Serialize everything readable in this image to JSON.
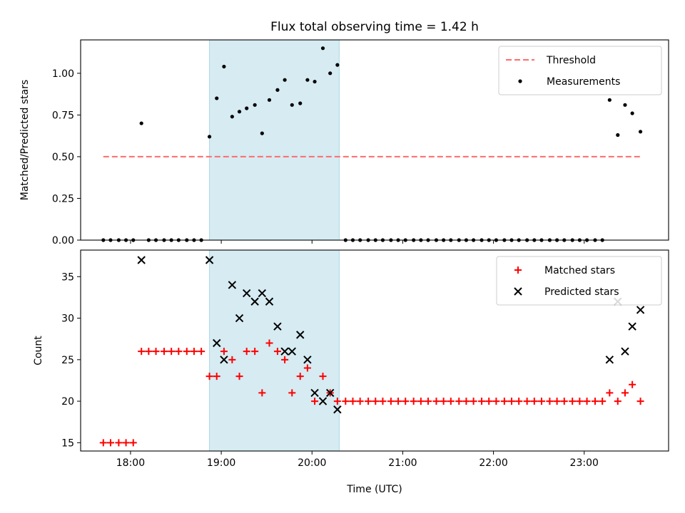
{
  "chart_data": {
    "title": "Flux total observing time = 1.42 h",
    "xlabel": "Time (UTC)",
    "x_units": "hours UTC",
    "xlim": [
      17.45,
      23.93
    ],
    "xticks": [
      {
        "value": 18,
        "label": "18:00"
      },
      {
        "value": 19,
        "label": "19:00"
      },
      {
        "value": 20,
        "label": "20:00"
      },
      {
        "value": 21,
        "label": "21:00"
      },
      {
        "value": 22,
        "label": "22:00"
      },
      {
        "value": 23,
        "label": "23:00"
      }
    ],
    "shaded_region": {
      "x": [
        18.87,
        20.3
      ],
      "color": "#add8e6"
    },
    "panels": [
      {
        "type": "scatter",
        "ylabel": "Matched/Predicted stars",
        "ylim": [
          0,
          1.2
        ],
        "yticks": [
          {
            "value": 0,
            "label": "0.00"
          },
          {
            "value": 0.25,
            "label": "0.25"
          },
          {
            "value": 0.5,
            "label": "0.50"
          },
          {
            "value": 0.75,
            "label": "0.75"
          },
          {
            "value": 1.0,
            "label": "1.00"
          }
        ],
        "legend_position": "upper right",
        "series": [
          {
            "name": "Threshold",
            "kind": "hline",
            "color": "#ff6b6b",
            "style": "dashed",
            "x": [
              17.7,
              23.63
            ],
            "y": [
              0.5,
              0.5
            ]
          },
          {
            "name": "Measurements",
            "kind": "dot",
            "color": "#000000",
            "x": [
              17.7,
              17.78,
              17.87,
              17.95,
              18.03,
              18.12,
              18.2,
              18.28,
              18.37,
              18.45,
              18.53,
              18.62,
              18.7,
              18.78,
              18.87,
              18.95,
              19.03,
              19.12,
              19.2,
              19.28,
              19.37,
              19.45,
              19.53,
              19.62,
              19.7,
              19.78,
              19.87,
              19.95,
              20.03,
              20.12,
              20.2,
              20.28,
              20.37,
              20.45,
              20.53,
              20.62,
              20.7,
              20.78,
              20.87,
              20.95,
              21.03,
              21.12,
              21.2,
              21.28,
              21.37,
              21.45,
              21.53,
              21.62,
              21.7,
              21.78,
              21.87,
              21.95,
              22.03,
              22.12,
              22.2,
              22.28,
              22.37,
              22.45,
              22.53,
              22.62,
              22.7,
              22.78,
              22.87,
              22.95,
              23.03,
              23.12,
              23.2,
              23.28,
              23.37,
              23.45,
              23.53,
              23.62
            ],
            "y": [
              0,
              0,
              0,
              0,
              0,
              0.7,
              0,
              0,
              0,
              0,
              0,
              0,
              0,
              0,
              0.62,
              0.85,
              1.04,
              0.74,
              0.77,
              0.79,
              0.81,
              0.64,
              0.84,
              0.9,
              0.96,
              0.81,
              0.82,
              0.96,
              0.95,
              1.15,
              1.0,
              1.05,
              0,
              0,
              0,
              0,
              0,
              0,
              0,
              0,
              0,
              0,
              0,
              0,
              0,
              0,
              0,
              0,
              0,
              0,
              0,
              0,
              0,
              0,
              0,
              0,
              0,
              0,
              0,
              0,
              0,
              0,
              0,
              0,
              0,
              0,
              0,
              0.84,
              0.63,
              0.81,
              0.76,
              0.65
            ]
          }
        ]
      },
      {
        "type": "scatter",
        "ylabel": "Count",
        "ylim": [
          14,
          38.2
        ],
        "yticks": [
          {
            "value": 15,
            "label": "15"
          },
          {
            "value": 20,
            "label": "20"
          },
          {
            "value": 25,
            "label": "25"
          },
          {
            "value": 30,
            "label": "30"
          },
          {
            "value": 35,
            "label": "35"
          }
        ],
        "legend_position": "upper right",
        "series": [
          {
            "name": "Matched stars",
            "kind": "plus",
            "color": "#ff0000",
            "x": [
              17.7,
              17.78,
              17.87,
              17.95,
              18.03,
              18.12,
              18.2,
              18.28,
              18.37,
              18.45,
              18.53,
              18.62,
              18.7,
              18.78,
              18.87,
              18.95,
              19.03,
              19.12,
              19.2,
              19.28,
              19.37,
              19.45,
              19.53,
              19.62,
              19.7,
              19.78,
              19.87,
              19.95,
              20.03,
              20.12,
              20.2,
              20.28,
              20.37,
              20.45,
              20.53,
              20.62,
              20.7,
              20.78,
              20.87,
              20.95,
              21.03,
              21.12,
              21.2,
              21.28,
              21.37,
              21.45,
              21.53,
              21.62,
              21.7,
              21.78,
              21.87,
              21.95,
              22.03,
              22.12,
              22.2,
              22.28,
              22.37,
              22.45,
              22.53,
              22.62,
              22.7,
              22.78,
              22.87,
              22.95,
              23.03,
              23.12,
              23.2,
              23.28,
              23.37,
              23.45,
              23.53,
              23.62
            ],
            "y": [
              15,
              15,
              15,
              15,
              15,
              26,
              26,
              26,
              26,
              26,
              26,
              26,
              26,
              26,
              23,
              23,
              26,
              25,
              23,
              26,
              26,
              21,
              27,
              26,
              25,
              21,
              23,
              24,
              20,
              23,
              21,
              20,
              20,
              20,
              20,
              20,
              20,
              20,
              20,
              20,
              20,
              20,
              20,
              20,
              20,
              20,
              20,
              20,
              20,
              20,
              20,
              20,
              20,
              20,
              20,
              20,
              20,
              20,
              20,
              20,
              20,
              20,
              20,
              20,
              20,
              20,
              20,
              21,
              20,
              21,
              22,
              20
            ]
          },
          {
            "name": "Predicted stars",
            "kind": "x",
            "color": "#000000",
            "x": [
              18.12,
              18.87,
              18.95,
              19.03,
              19.12,
              19.2,
              19.28,
              19.37,
              19.45,
              19.53,
              19.62,
              19.7,
              19.78,
              19.87,
              19.95,
              20.03,
              20.12,
              20.2,
              20.28,
              23.28,
              23.37,
              23.45,
              23.53,
              23.62
            ],
            "y": [
              37,
              37,
              27,
              25,
              34,
              30,
              33,
              32,
              33,
              32,
              29,
              26,
              26,
              28,
              25,
              21,
              20,
              21,
              19,
              25,
              32,
              26,
              29,
              31
            ]
          }
        ]
      }
    ]
  }
}
